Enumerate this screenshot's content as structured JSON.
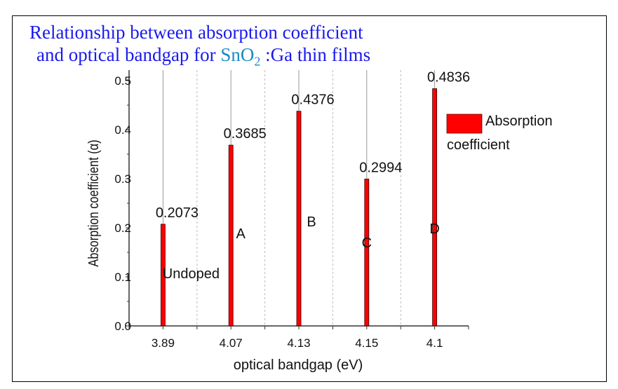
{
  "chart_data": {
    "type": "bar",
    "title_line1": "Relationship between absorption coefficient",
    "title_line2_pre": "and optical bandgap for ",
    "title_chem": "SnO",
    "title_chem_sub": "2",
    "title_line2_post": " :Ga thin films",
    "xlabel": "optical bandgap (eV)",
    "ylabel": "Absorption coefficient (α)",
    "categories": [
      "3.89",
      "4.07",
      "4.13",
      "4.15",
      "4.1"
    ],
    "values": [
      0.2073,
      0.3685,
      0.4376,
      0.2994,
      0.4836
    ],
    "data_labels": [
      "0.2073",
      "0.3685",
      "0.4376",
      "0.2994",
      "0.4836"
    ],
    "sample_labels": [
      "Undoped",
      "A",
      "B",
      "C",
      "D"
    ],
    "ylim": [
      0,
      0.5
    ],
    "yticks": [
      "0.0",
      "0.1",
      "0.2",
      "0.3",
      "0.4",
      "0.5"
    ],
    "grid": true,
    "legend": {
      "label_line1": "Absorption",
      "label_line2": "coefficient",
      "placement": "right"
    },
    "colors": {
      "bar": "#ff0000",
      "title": "#1a1aee",
      "chem": "#1a8ac8"
    }
  }
}
